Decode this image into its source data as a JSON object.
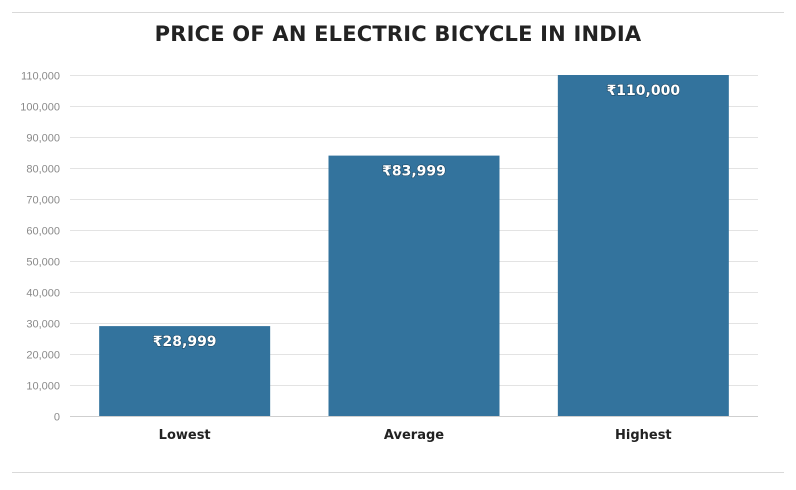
{
  "chart_data": {
    "type": "bar",
    "title": "PRICE OF AN ELECTRIC BICYCLE IN INDIA",
    "categories": [
      "Lowest",
      "Average",
      "Highest"
    ],
    "values": [
      28999,
      83999,
      110000
    ],
    "data_labels": [
      "₹28,999",
      "₹83,999",
      "₹110,000"
    ],
    "ylim": [
      0,
      110000
    ],
    "yticks": [
      0,
      10000,
      20000,
      30000,
      40000,
      50000,
      60000,
      70000,
      80000,
      90000,
      100000,
      110000
    ],
    "ytick_labels": [
      "0",
      "10,000",
      "20,000",
      "30,000",
      "40,000",
      "50,000",
      "60,000",
      "70,000",
      "80,000",
      "90,000",
      "100,000",
      "110,000"
    ],
    "xlabel": "",
    "ylabel": "",
    "grid": true,
    "legend": "none",
    "colors": {
      "bar": "#33739d",
      "grid": "#e3e3e3",
      "text": "#222222",
      "tick": "#8a8a8a"
    }
  }
}
